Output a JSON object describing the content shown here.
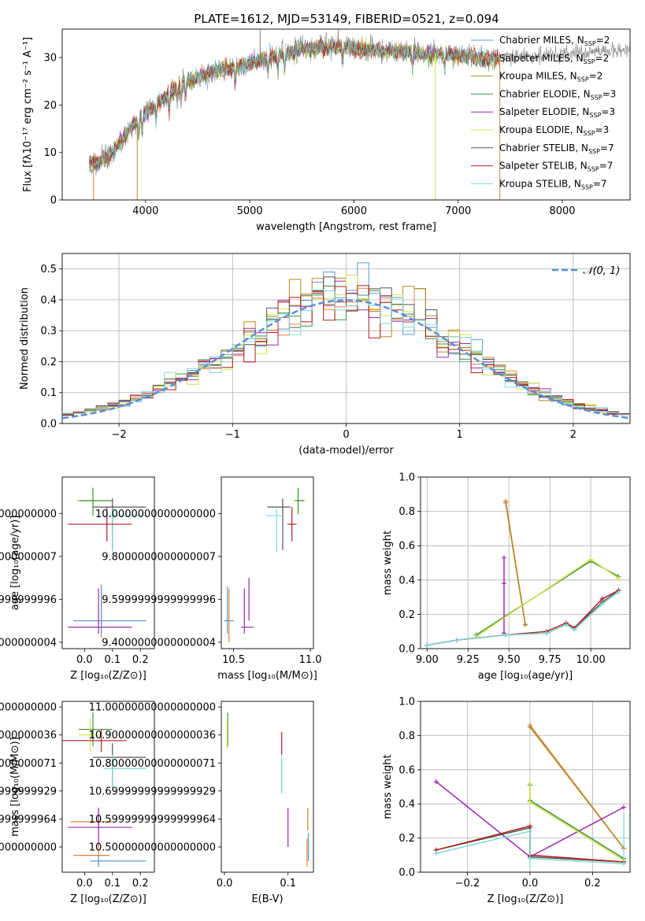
{
  "figure": {
    "title": "PLATE=1612, MJD=53149, FIBERID=0521, z=0.094"
  },
  "colors": {
    "Chabrier MILES": "#5a9bd5",
    "Salpeter MILES": "#e8803a",
    "Kroupa MILES": "#b58a1b",
    "Chabrier ELODIE": "#3f8f3f",
    "Salpeter ELODIE": "#9b27af",
    "Kroupa ELODIE": "#d6e34a",
    "Chabrier STELIB": "#555555",
    "Salpeter STELIB": "#b31d1d",
    "Kroupa STELIB": "#7fd8d8",
    "gaussian": "#5a8fd5",
    "grid": "#b0b0b0"
  },
  "chart_data": [
    {
      "id": "spectrum",
      "type": "line",
      "title": "PLATE=1612, MJD=53149, FIBERID=0521, z=0.094",
      "xlabel": "wavelength [Angstrom, rest frame]",
      "ylabel": "Flux [fλ10⁻¹⁷ erg cm⁻² s⁻¹ A⁻¹]",
      "xlim": [
        3200,
        8650
      ],
      "ylim": [
        0,
        36
      ],
      "xticks": [
        4000,
        5000,
        6000,
        7000,
        8000
      ],
      "yticks": [
        0,
        10,
        20,
        30
      ],
      "grid": false,
      "legend": "top-right",
      "legend_entries": [
        {
          "name": "Chabrier MILES",
          "nssp": "2"
        },
        {
          "name": "Salpeter MILES",
          "nssp": "2"
        },
        {
          "name": "Kroupa MILES",
          "nssp": "2"
        },
        {
          "name": "Chabrier ELODIE",
          "nssp": "3"
        },
        {
          "name": "Salpeter ELODIE",
          "nssp": "3"
        },
        {
          "name": "Kroupa ELODIE",
          "nssp": "3"
        },
        {
          "name": "Chabrier STELIB",
          "nssp": "7"
        },
        {
          "name": "Salpeter STELIB",
          "nssp": "7"
        },
        {
          "name": "Kroupa STELIB",
          "nssp": "7"
        }
      ],
      "continuum": {
        "x": [
          3460,
          3550,
          3650,
          3750,
          3850,
          3950,
          4050,
          4150,
          4300,
          4500,
          4700,
          4900,
          5100,
          5300,
          5500,
          5700,
          5900,
          6100,
          6300,
          6500,
          6700,
          6900,
          7100,
          7300,
          7400
        ],
        "y": [
          7.5,
          8.0,
          9.5,
          12.0,
          15.0,
          17.5,
          19.5,
          21.0,
          24.0,
          26.0,
          27.5,
          28.5,
          29.5,
          31.0,
          32.0,
          32.5,
          32.5,
          32.0,
          31.5,
          31.5,
          31.0,
          31.0,
          30.5,
          30.0,
          30.0
        ]
      },
      "data_range": [
        3460,
        7400
      ],
      "model_range": [
        3460,
        7400
      ],
      "spikes": [
        {
          "x": 3500,
          "y": 0,
          "series": "Salpeter MILES"
        },
        {
          "x": 3920,
          "y": 0,
          "series": "Kroupa MILES"
        },
        {
          "x": 5100,
          "y": 36,
          "series": "data"
        },
        {
          "x": 5850,
          "y": 36,
          "series": "data"
        },
        {
          "x": 6780,
          "y": 0,
          "series": "Kroupa ELODIE"
        },
        {
          "x": 7400,
          "y": 0,
          "series": "Salpeter MILES"
        }
      ]
    },
    {
      "id": "residuals",
      "type": "line",
      "xlabel": "(data-model)/error",
      "ylabel": "Normed distribution",
      "xlim": [
        -2.5,
        2.5
      ],
      "ylim": [
        0,
        0.55
      ],
      "xticks": [
        -2,
        -1,
        0,
        1,
        2
      ],
      "yticks": [
        0.0,
        0.1,
        0.2,
        0.3,
        0.4,
        0.5
      ],
      "grid": true,
      "legend": "top-right",
      "legend_entries": [
        {
          "name": "𝒩(0, 1)"
        }
      ],
      "bin_width": 0.1,
      "bin_start": -2.5,
      "gaussian": {
        "mean": 0,
        "sigma": 1
      }
    },
    {
      "id": "age-vs-Z",
      "type": "scatter",
      "xlabel": "Z [log₁₀(Z/Z⊙)]",
      "ylabel": "age  [log₁₀(age/yr)]",
      "xlim": [
        -0.08,
        0.25
      ],
      "ylim": [
        9.37,
        10.17
      ],
      "xticks": [
        0.0,
        0.1,
        0.2
      ],
      "yticks": [
        9.4,
        9.6,
        9.8,
        10.0
      ],
      "grid": false,
      "points": [
        {
          "series": "Kroupa ELODIE",
          "x": 0.03,
          "y": 10.06,
          "xerr": [
            0.06,
            0.03
          ],
          "yerr": [
            0.07,
            0.06
          ]
        },
        {
          "series": "Chabrier ELODIE",
          "x": 0.03,
          "y": 10.06,
          "xerr": [
            0.05,
            0.07
          ],
          "yerr": [
            0.07,
            0.06
          ]
        },
        {
          "series": "Chabrier STELIB",
          "x": 0.1,
          "y": 10.03,
          "xerr": [
            0.07,
            0.12
          ],
          "yerr": [
            0.2,
            0.04
          ]
        },
        {
          "series": "Kroupa STELIB",
          "x": 0.1,
          "y": 9.99,
          "xerr": [
            0.03,
            0.12
          ],
          "yerr": [
            0.17,
            0.03
          ]
        },
        {
          "series": "Salpeter STELIB",
          "x": 0.08,
          "y": 9.95,
          "xerr": [
            0.14,
            0.09
          ],
          "yerr": [
            0.08,
            0.08
          ]
        },
        {
          "series": "Salpeter MILES",
          "x": 0.06,
          "y": 9.5,
          "xerr": [
            0.1,
            0.04
          ],
          "yerr": [
            0.08,
            0.17
          ]
        },
        {
          "series": "Chabrier MILES",
          "x": 0.06,
          "y": 9.5,
          "xerr": [
            0.1,
            0.16
          ],
          "yerr": [
            0.06,
            0.16
          ]
        },
        {
          "series": "Salpeter ELODIE",
          "x": 0.05,
          "y": 9.47,
          "xerr": [
            0.11,
            0.12
          ],
          "yerr": [
            0.03,
            0.18
          ]
        }
      ]
    },
    {
      "id": "age-vs-mass",
      "type": "scatter",
      "xlabel": "mass [log₁₀(M/M⊙)]",
      "xlim": [
        10.42,
        11.02
      ],
      "ylim": [
        9.37,
        10.17
      ],
      "xticks": [
        10.5,
        11.0
      ],
      "yticks": [
        9.4,
        9.6,
        9.8,
        10.0
      ],
      "grid": false,
      "points": [
        {
          "series": "Kroupa ELODIE",
          "x": 10.92,
          "y": 10.06,
          "xerr": [
            0.03,
            0.05
          ],
          "yerr": [
            0.07,
            0.05
          ]
        },
        {
          "series": "Chabrier ELODIE",
          "x": 10.92,
          "y": 10.06,
          "xerr": [
            0.02,
            0.04
          ],
          "yerr": [
            0.06,
            0.06
          ]
        },
        {
          "series": "Chabrier STELIB",
          "x": 10.82,
          "y": 10.03,
          "xerr": [
            0.1,
            0.05
          ],
          "yerr": [
            0.2,
            0.04
          ]
        },
        {
          "series": "Kroupa STELIB",
          "x": 10.78,
          "y": 9.99,
          "xerr": [
            0.07,
            0.05
          ],
          "yerr": [
            0.17,
            0.03
          ]
        },
        {
          "series": "Salpeter STELIB",
          "x": 10.88,
          "y": 9.95,
          "xerr": [
            0.03,
            0.03
          ],
          "yerr": [
            0.08,
            0.08
          ]
        },
        {
          "series": "Salpeter MILES",
          "x": 10.47,
          "y": 9.5,
          "xerr": [
            0.02,
            0.03
          ],
          "yerr": [
            0.1,
            0.15
          ]
        },
        {
          "series": "Chabrier MILES",
          "x": 10.46,
          "y": 9.5,
          "xerr": [
            0.02,
            0.04
          ],
          "yerr": [
            0.06,
            0.16
          ]
        },
        {
          "series": "Salpeter ELODIE",
          "x": 10.57,
          "y": 9.47,
          "xerr": [
            0.02,
            0.06
          ],
          "yerr": [
            0.03,
            0.18
          ]
        },
        {
          "series": "Salpeter ELODIE",
          "x": 10.6,
          "y": 9.5,
          "xerr": [
            0.0,
            0.0
          ],
          "yerr": [
            0.0,
            0.2
          ]
        }
      ]
    },
    {
      "id": "weight-vs-age",
      "type": "line",
      "xlabel": "age  [log₁₀(age/yr)]",
      "ylabel": "mass weight",
      "xlim": [
        8.96,
        10.24
      ],
      "ylim": [
        0,
        1.0
      ],
      "xticks": [
        9.0,
        9.25,
        9.5,
        9.75,
        10.0
      ],
      "yticks": [
        0.0,
        0.2,
        0.4,
        0.6,
        0.8,
        1.0
      ],
      "grid": true,
      "series": [
        {
          "name": "Chabrier MILES",
          "x": [
            9.48,
            9.6
          ],
          "y": [
            0.85,
            0.14
          ]
        },
        {
          "name": "Salpeter MILES",
          "x": [
            9.48,
            9.6
          ],
          "y": [
            0.86,
            0.14
          ]
        },
        {
          "name": "Kroupa MILES",
          "x": [
            9.48,
            9.6
          ],
          "y": [
            0.85,
            0.14
          ]
        },
        {
          "name": "Chabrier ELODIE",
          "x": [
            9.3,
            10.0,
            10.17
          ],
          "y": [
            0.08,
            0.51,
            0.42
          ]
        },
        {
          "name": "Salpeter ELODIE",
          "x": [
            9.47,
            9.47,
            9.47
          ],
          "y": [
            0.09,
            0.38,
            0.53
          ]
        },
        {
          "name": "Kroupa ELODIE",
          "x": [
            9.3,
            10.0,
            10.17
          ],
          "y": [
            0.07,
            0.52,
            0.41
          ]
        },
        {
          "name": "Chabrier STELIB",
          "x": [
            9.0,
            9.18,
            9.48,
            9.73,
            9.85,
            9.9,
            10.07,
            10.17
          ],
          "y": [
            0.02,
            0.05,
            0.08,
            0.09,
            0.14,
            0.12,
            0.27,
            0.34
          ]
        },
        {
          "name": "Salpeter STELIB",
          "x": [
            9.0,
            9.18,
            9.48,
            9.73,
            9.85,
            9.9,
            10.07,
            10.17
          ],
          "y": [
            0.02,
            0.05,
            0.08,
            0.1,
            0.15,
            0.12,
            0.29,
            0.34
          ]
        },
        {
          "name": "Kroupa STELIB",
          "x": [
            9.0,
            9.18,
            9.48,
            9.73,
            9.85,
            9.9,
            10.07,
            10.17
          ],
          "y": [
            0.02,
            0.05,
            0.08,
            0.09,
            0.14,
            0.11,
            0.26,
            0.33
          ]
        }
      ]
    },
    {
      "id": "mass-vs-Z",
      "type": "scatter",
      "xlabel": "Z [log₁₀(Z/Z⊙)]",
      "ylabel": "mass [log₁₀(M/M⊙)]",
      "xlim": [
        -0.08,
        0.25
      ],
      "ylim": [
        10.41,
        11.02
      ],
      "xticks": [
        0.0,
        0.1,
        0.2
      ],
      "yticks": [
        10.5,
        10.6,
        10.7,
        10.8,
        10.9,
        11.0
      ],
      "grid": false,
      "points": [
        {
          "series": "Chabrier ELODIE",
          "x": 0.03,
          "y": 10.92,
          "xerr": [
            0.05,
            0.07
          ],
          "yerr": [
            0.06,
            0.06
          ]
        },
        {
          "series": "Kroupa ELODIE",
          "x": 0.02,
          "y": 10.9,
          "xerr": [
            0.04,
            0.04
          ],
          "yerr": [
            0.06,
            0.06
          ]
        },
        {
          "series": "Salpeter STELIB",
          "x": 0.06,
          "y": 10.88,
          "xerr": [
            0.15,
            0.09
          ],
          "yerr": [
            0.04,
            0.04
          ]
        },
        {
          "series": "Chabrier STELIB",
          "x": 0.1,
          "y": 10.82,
          "xerr": [
            0.07,
            0.12
          ],
          "yerr": [
            0.11,
            0.05
          ]
        },
        {
          "series": "Kroupa STELIB",
          "x": 0.1,
          "y": 10.78,
          "xerr": [
            0.03,
            0.12
          ],
          "yerr": [
            0.07,
            0.05
          ]
        },
        {
          "series": "Salpeter MILES",
          "x": 0.05,
          "y": 10.59,
          "xerr": [
            0.1,
            0.05
          ],
          "yerr": [
            0.05,
            0.05
          ]
        },
        {
          "series": "Salpeter ELODIE",
          "x": 0.05,
          "y": 10.57,
          "xerr": [
            0.11,
            0.12
          ],
          "yerr": [
            0.07,
            0.07
          ]
        },
        {
          "series": "Salpeter MILES",
          "x": 0.05,
          "y": 10.47,
          "xerr": [
            0.09,
            0.04
          ],
          "yerr": [
            0.04,
            0.04
          ]
        },
        {
          "series": "Chabrier MILES",
          "x": 0.05,
          "y": 10.45,
          "xerr": [
            0.03,
            0.17
          ],
          "yerr": [
            0.02,
            0.02
          ]
        }
      ]
    },
    {
      "id": "mass-vs-EBV",
      "type": "scatter",
      "xlabel": "E(B-V)",
      "xlim": [
        -0.005,
        0.14
      ],
      "ylim": [
        10.41,
        11.02
      ],
      "xticks": [
        0.0,
        0.1
      ],
      "yticks": [
        10.5,
        10.6,
        10.7,
        10.8,
        10.9,
        11.0
      ],
      "grid": false,
      "points": [
        {
          "series": "Chabrier ELODIE",
          "x": 0.005,
          "y": 10.92,
          "xerr": [
            0,
            0
          ],
          "yerr": [
            0.06,
            0.06
          ]
        },
        {
          "series": "Kroupa ELODIE",
          "x": 0.004,
          "y": 10.9,
          "xerr": [
            0,
            0
          ],
          "yerr": [
            0.05,
            0.05
          ]
        },
        {
          "series": "Salpeter STELIB",
          "x": 0.09,
          "y": 10.87,
          "xerr": [
            0,
            0
          ],
          "yerr": [
            0.04,
            0.04
          ]
        },
        {
          "series": "Kroupa STELIB",
          "x": 0.09,
          "y": 10.76,
          "xerr": [
            0,
            0
          ],
          "yerr": [
            0.07,
            0.07
          ]
        },
        {
          "series": "Salpeter ELODIE",
          "x": 0.1,
          "y": 10.57,
          "xerr": [
            0,
            0
          ],
          "yerr": [
            0.07,
            0.07
          ]
        },
        {
          "series": "Salpeter MILES",
          "x": 0.13,
          "y": 10.48,
          "xerr": [
            0,
            0
          ],
          "yerr": [
            0.05,
            0.05
          ]
        },
        {
          "series": "Chabrier MILES",
          "x": 0.132,
          "y": 10.5,
          "xerr": [
            0,
            0
          ],
          "yerr": [
            0.05,
            0.05
          ]
        },
        {
          "series": "Kroupa MILES",
          "x": 0.131,
          "y": 10.6,
          "xerr": [
            0,
            0
          ],
          "yerr": [
            0.04,
            0.04
          ]
        }
      ]
    },
    {
      "id": "weight-vs-Z",
      "type": "line",
      "xlabel": "Z [log₁₀(Z/Z⊙)]",
      "ylabel": "mass weight",
      "xlim": [
        -0.35,
        0.32
      ],
      "ylim": [
        0,
        1.0
      ],
      "xticks": [
        -0.2,
        0.0,
        0.2
      ],
      "yticks": [
        0.0,
        0.2,
        0.4,
        0.6,
        0.8,
        1.0
      ],
      "grid": true,
      "series": [
        {
          "name": "Chabrier MILES",
          "x": [
            0.0,
            0.3
          ],
          "y": [
            0.85,
            0.14
          ]
        },
        {
          "name": "Salpeter MILES",
          "x": [
            0.0,
            0.3
          ],
          "y": [
            0.86,
            0.14
          ]
        },
        {
          "name": "Kroupa MILES",
          "x": [
            0.0,
            0.3
          ],
          "y": [
            0.85,
            0.14
          ]
        },
        {
          "name": "Salpeter ELODIE",
          "x": [
            -0.3,
            0.0,
            0.3
          ],
          "y": [
            0.53,
            0.09,
            0.38
          ]
        },
        {
          "name": "Chabrier ELODIE",
          "x": [
            0.0,
            0.0,
            0.3
          ],
          "y": [
            0.51,
            0.42,
            0.08
          ]
        },
        {
          "name": "Kroupa ELODIE",
          "x": [
            0.0,
            0.0,
            0.3
          ],
          "y": [
            0.52,
            0.41,
            0.07
          ]
        },
        {
          "name": "Chabrier STELIB",
          "x": [
            -0.3,
            0.0,
            0.0,
            0.3
          ],
          "y": [
            0.13,
            0.26,
            0.09,
            0.06
          ]
        },
        {
          "name": "Salpeter STELIB",
          "x": [
            -0.3,
            0.0,
            0.0,
            0.3
          ],
          "y": [
            0.13,
            0.27,
            0.1,
            0.06
          ]
        },
        {
          "name": "Kroupa STELIB",
          "x": [
            -0.3,
            0.0,
            0.0,
            0.3
          ],
          "y": [
            0.11,
            0.24,
            0.08,
            0.05
          ]
        }
      ],
      "errorbars": [
        {
          "series": "Kroupa STELIB",
          "x": 0.0,
          "y": 0.25,
          "yerr": [
            0.23,
            0.0
          ]
        },
        {
          "series": "Kroupa STELIB",
          "x": 0.3,
          "y": 0.3,
          "yerr": [
            0.25,
            0.05
          ]
        },
        {
          "series": "Kroupa ELODIE",
          "x": 0.0,
          "y": 0.5,
          "yerr": [
            0.05,
            0.02
          ]
        }
      ]
    }
  ]
}
